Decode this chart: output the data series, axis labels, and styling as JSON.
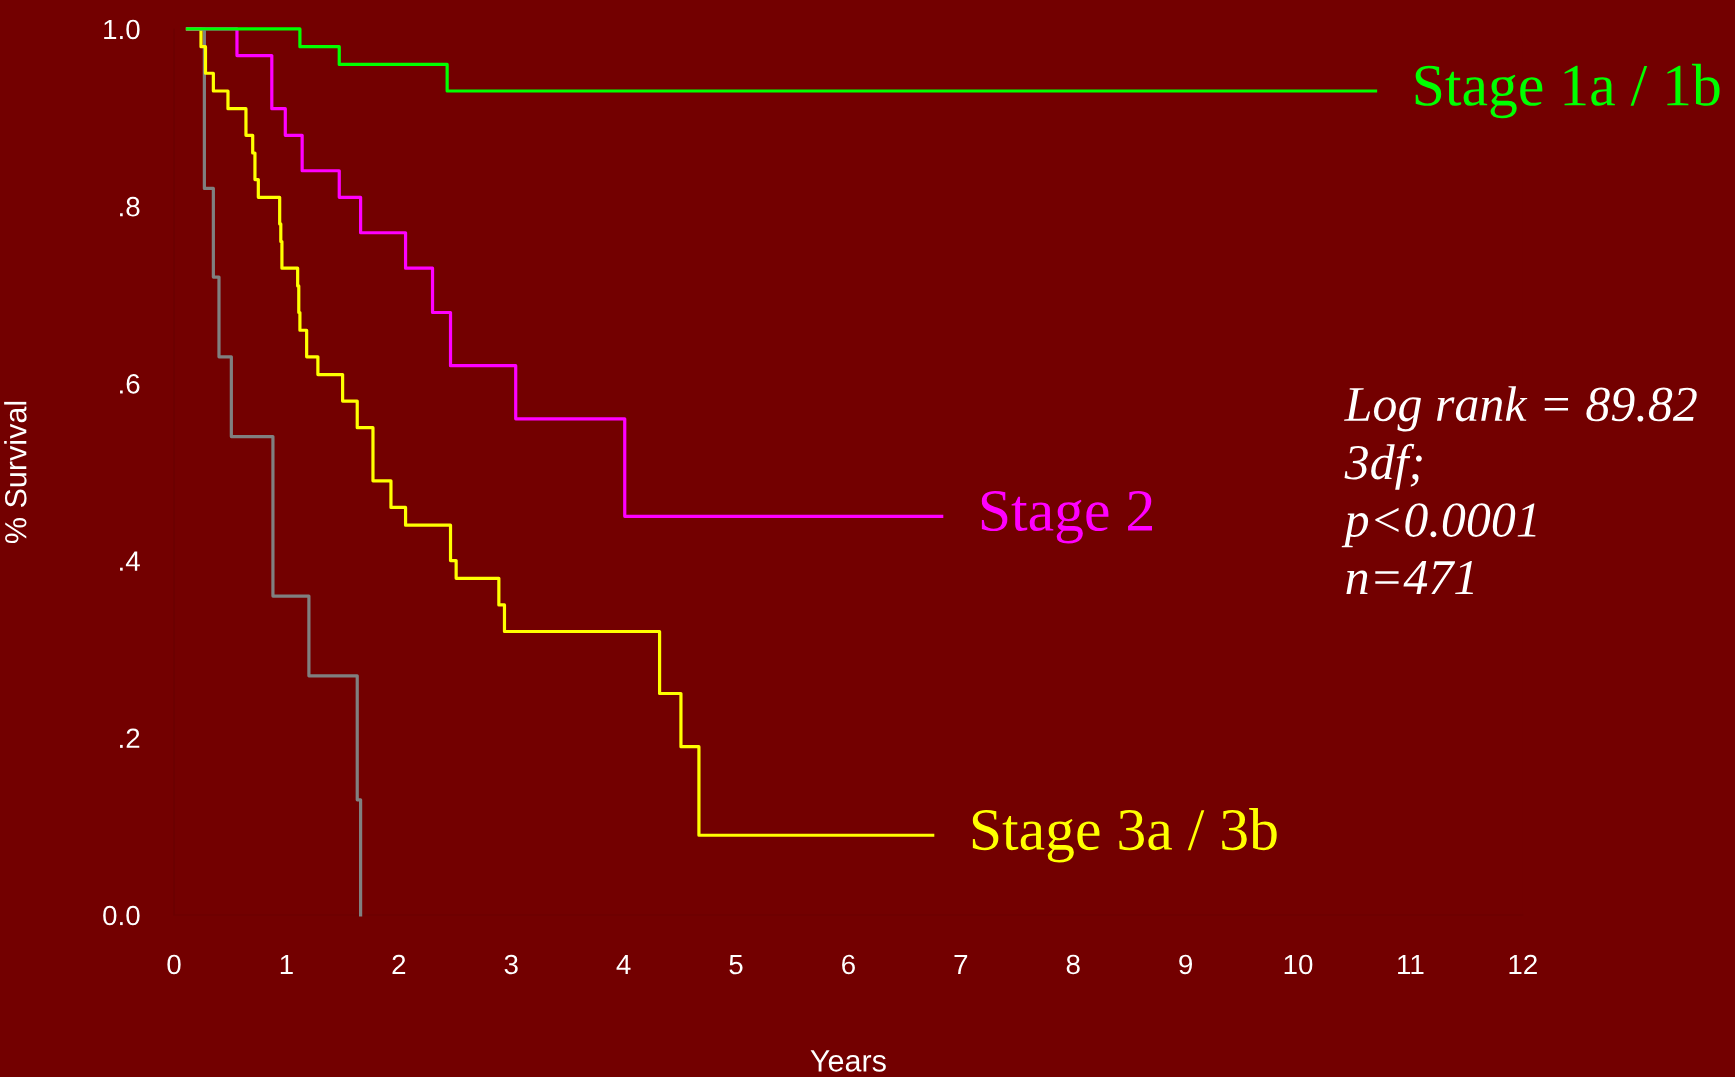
{
  "chart_data": {
    "type": "step",
    "xlabel": "Years",
    "ylabel": "% Survival",
    "xlim": [
      0,
      12
    ],
    "ylim": [
      0,
      1.0
    ],
    "xticks": [
      0,
      1,
      2,
      3,
      4,
      5,
      6,
      7,
      8,
      9,
      10,
      11,
      12
    ],
    "yticks": [
      {
        "value": 0,
        "label": "0.0"
      },
      {
        "value": 0.2,
        "label": ".2"
      },
      {
        "value": 0.4,
        "label": ".4"
      },
      {
        "value": 0.6,
        "label": ".6"
      },
      {
        "value": 0.8,
        "label": ".8"
      },
      {
        "value": 1.0,
        "label": "1.0"
      }
    ],
    "grid": false,
    "legend": false,
    "marker": "none",
    "line_style": "solid",
    "annotations": [
      "Log rank = 89.82\n3df;\np<0.0001\nn=471"
    ],
    "series": [
      {
        "name": "Stage 1a / 1b",
        "color": "#00ff00",
        "x": [
          0.12,
          1.12,
          1.47,
          2.43,
          10.69
        ],
        "values": [
          1.0,
          0.98,
          0.96,
          0.93,
          0.93
        ]
      },
      {
        "name": "Stage 2",
        "color": "#ff00ff",
        "x": [
          0.12,
          0.56,
          0.87,
          0.99,
          1.14,
          1.47,
          1.66,
          2.06,
          2.3,
          2.46,
          3.04,
          4.01,
          6.83
        ],
        "values": [
          1.0,
          0.97,
          0.91,
          0.88,
          0.84,
          0.81,
          0.77,
          0.73,
          0.68,
          0.62,
          0.56,
          0.45,
          0.45
        ]
      },
      {
        "name": "Stage 3a / 3b",
        "color": "#ffff00",
        "x": [
          0.12,
          0.24,
          0.28,
          0.35,
          0.48,
          0.64,
          0.7,
          0.72,
          0.75,
          0.94,
          0.95,
          0.96,
          1.1,
          1.11,
          1.12,
          1.18,
          1.28,
          1.5,
          1.63,
          1.77,
          1.93,
          2.06,
          2.46,
          2.51,
          2.89,
          2.94,
          4.32,
          4.51,
          4.67,
          6.75
        ],
        "values": [
          1.0,
          0.98,
          0.95,
          0.93,
          0.91,
          0.88,
          0.86,
          0.83,
          0.81,
          0.78,
          0.76,
          0.73,
          0.71,
          0.68,
          0.66,
          0.63,
          0.61,
          0.58,
          0.55,
          0.49,
          0.46,
          0.44,
          0.4,
          0.38,
          0.35,
          0.32,
          0.25,
          0.19,
          0.09,
          0.09
        ]
      },
      {
        "color": "#808080",
        "x": [
          0.12,
          0.27,
          0.35,
          0.4,
          0.51,
          0.88,
          1.2,
          1.63,
          1.66
        ],
        "values": [
          1.0,
          0.82,
          0.72,
          0.63,
          0.54,
          0.36,
          0.27,
          0.13,
          0.0
        ]
      }
    ]
  }
}
